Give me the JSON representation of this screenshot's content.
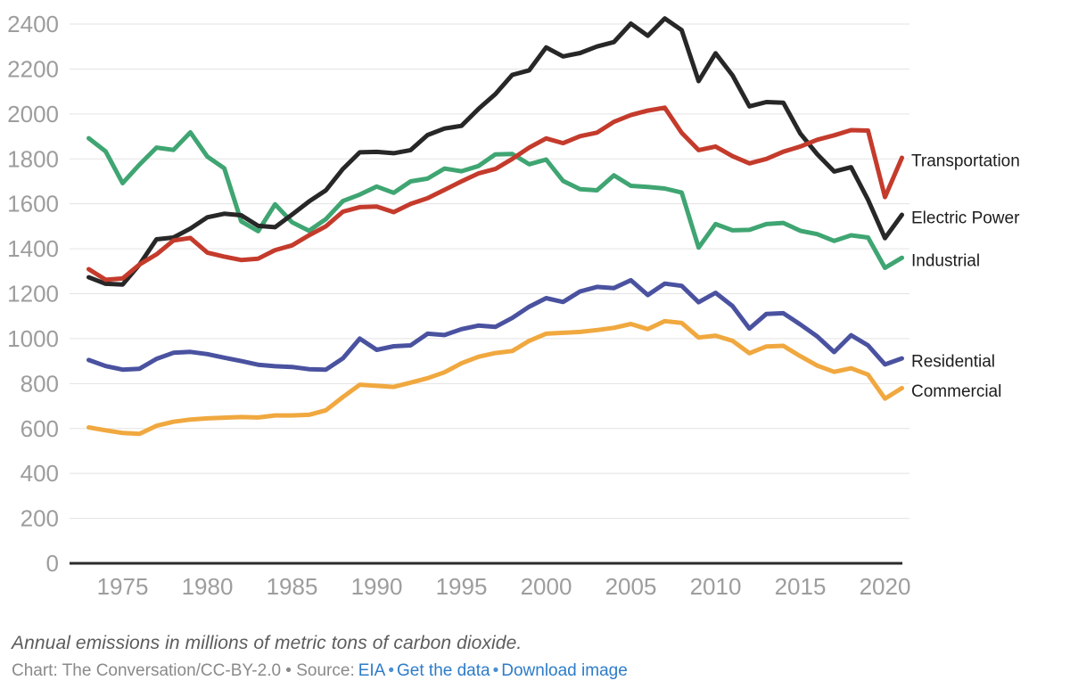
{
  "chart_data": {
    "type": "line",
    "title": "",
    "xlabel": "",
    "ylabel": "",
    "units": "millions of metric tons of carbon dioxide",
    "ylim": [
      0,
      2400
    ],
    "grid": "horizontal",
    "legend_position": "right-of-line-ends",
    "y_ticks": [
      0,
      200,
      400,
      600,
      800,
      1000,
      1200,
      1400,
      1600,
      1800,
      2000,
      2200,
      2400
    ],
    "x_ticks": [
      1975,
      1980,
      1985,
      1990,
      1995,
      2000,
      2005,
      2010,
      2015,
      2020
    ],
    "x": [
      1973,
      1974,
      1975,
      1976,
      1977,
      1978,
      1979,
      1980,
      1981,
      1982,
      1983,
      1984,
      1985,
      1986,
      1987,
      1988,
      1989,
      1990,
      1991,
      1992,
      1993,
      1994,
      1995,
      1996,
      1997,
      1998,
      1999,
      2000,
      2001,
      2002,
      2003,
      2004,
      2005,
      2006,
      2007,
      2008,
      2009,
      2010,
      2011,
      2012,
      2013,
      2014,
      2015,
      2016,
      2017,
      2018,
      2019,
      2020,
      2021
    ],
    "series": [
      {
        "name": "Industrial",
        "color": "#3fa572",
        "values": [
          1892,
          1833,
          1692,
          1775,
          1850,
          1840,
          1918,
          1810,
          1758,
          1522,
          1478,
          1598,
          1518,
          1480,
          1532,
          1612,
          1641,
          1677,
          1649,
          1700,
          1712,
          1757,
          1745,
          1768,
          1820,
          1822,
          1776,
          1797,
          1702,
          1665,
          1660,
          1727,
          1680,
          1675,
          1668,
          1650,
          1405,
          1510,
          1482,
          1484,
          1510,
          1515,
          1480,
          1465,
          1435,
          1460,
          1450,
          1315,
          1360
        ]
      },
      {
        "name": "Electric Power",
        "color": "#272727",
        "values": [
          1273,
          1244,
          1241,
          1330,
          1442,
          1450,
          1490,
          1540,
          1556,
          1549,
          1502,
          1496,
          1552,
          1610,
          1660,
          1755,
          1829,
          1831,
          1825,
          1839,
          1906,
          1935,
          1947,
          2022,
          2088,
          2174,
          2194,
          2296,
          2256,
          2271,
          2300,
          2320,
          2402,
          2348,
          2425,
          2373,
          2146,
          2270,
          2172,
          2034,
          2053,
          2050,
          1913,
          1821,
          1744,
          1763,
          1618,
          1447,
          1551
        ]
      },
      {
        "name": "Residential",
        "color": "#4a52a0",
        "values": [
          905,
          878,
          862,
          866,
          910,
          937,
          941,
          931,
          915,
          900,
          884,
          877,
          874,
          864,
          862,
          912,
          1000,
          950,
          966,
          970,
          1022,
          1016,
          1042,
          1058,
          1052,
          1092,
          1142,
          1180,
          1163,
          1210,
          1230,
          1225,
          1260,
          1194,
          1245,
          1235,
          1162,
          1204,
          1145,
          1045,
          1110,
          1113,
          1063,
          1010,
          940,
          1015,
          970,
          885,
          912
        ]
      },
      {
        "name": "Commercial",
        "color": "#f0a83f",
        "values": [
          605,
          592,
          580,
          576,
          612,
          630,
          640,
          645,
          648,
          651,
          649,
          658,
          658,
          661,
          681,
          740,
          795,
          790,
          785,
          804,
          824,
          850,
          890,
          919,
          936,
          945,
          990,
          1022,
          1026,
          1030,
          1038,
          1048,
          1065,
          1042,
          1078,
          1070,
          1005,
          1013,
          990,
          935,
          965,
          968,
          922,
          880,
          852,
          868,
          840,
          733,
          780
        ]
      },
      {
        "name": "Transportation",
        "color": "#c43b2c",
        "values": [
          1309,
          1262,
          1268,
          1330,
          1375,
          1437,
          1448,
          1383,
          1365,
          1350,
          1356,
          1394,
          1415,
          1460,
          1500,
          1565,
          1585,
          1588,
          1563,
          1600,
          1625,
          1662,
          1700,
          1735,
          1755,
          1800,
          1850,
          1891,
          1870,
          1901,
          1917,
          1965,
          1995,
          2015,
          2028,
          1916,
          1839,
          1855,
          1812,
          1780,
          1800,
          1832,
          1855,
          1885,
          1905,
          1928,
          1926,
          1630,
          1805
        ]
      }
    ],
    "line_end_labels": [
      "Transportation",
      "Electric Power",
      "Industrial",
      "Residential",
      "Commercial"
    ]
  },
  "footer": {
    "caption": "Annual emissions in millions of metric tons of carbon dioxide.",
    "credit_prefix": "Chart: The Conversation/CC-BY-2.0 • Source:",
    "links": {
      "source": "EIA",
      "data": "Get the data",
      "download": "Download image"
    },
    "separator": "•"
  },
  "colors": {
    "axis": "#2b2b2b",
    "gridline": "#e3e3e3",
    "tick_label": "#9d9d9d",
    "series_label": "#1d1d1d",
    "caption_text": "#5c5c5c",
    "credit_text": "#8a8a8a",
    "link": "#2d7cc9"
  }
}
